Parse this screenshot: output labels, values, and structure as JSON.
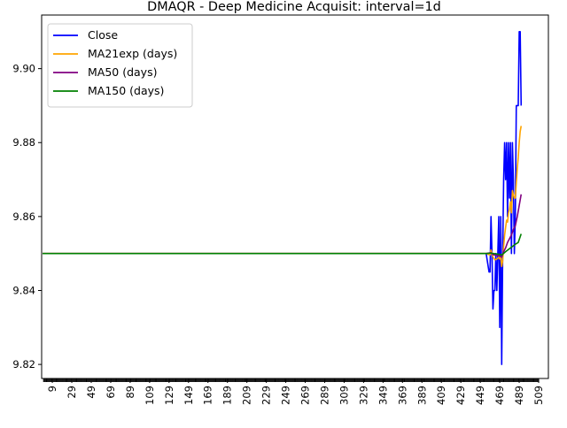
{
  "chart_data": {
    "type": "line",
    "title": "DMAQR - Deep Medicine Acquisit: interval=1d",
    "xlabel": "",
    "ylabel": "",
    "xlim": [
      -2,
      519
    ],
    "ylim": [
      9.8162,
      9.9145
    ],
    "x_ticks": [
      9,
      29,
      49,
      69,
      89,
      109,
      129,
      149,
      169,
      189,
      209,
      229,
      249,
      269,
      289,
      309,
      329,
      349,
      369,
      389,
      409,
      429,
      449,
      469,
      489,
      509
    ],
    "y_ticks": [
      9.82,
      9.84,
      9.86,
      9.88,
      9.9
    ],
    "y_tick_labels": [
      "9.82",
      "9.84",
      "9.86",
      "9.88",
      "9.90"
    ],
    "legend_position": "top-left",
    "series": [
      {
        "name": "Close",
        "color": "#0000ff",
        "points": [
          [
            455,
            9.85
          ],
          [
            458,
            9.845
          ],
          [
            459,
            9.845
          ],
          [
            460,
            9.86
          ],
          [
            461,
            9.85
          ],
          [
            462,
            9.835
          ],
          [
            463,
            9.84
          ],
          [
            464,
            9.84
          ],
          [
            465,
            9.85
          ],
          [
            466,
            9.84
          ],
          [
            467,
            9.85
          ],
          [
            468,
            9.86
          ],
          [
            469,
            9.83
          ],
          [
            470,
            9.86
          ],
          [
            471,
            9.82
          ],
          [
            472,
            9.85
          ],
          [
            473,
            9.87
          ],
          [
            474,
            9.88
          ],
          [
            475,
            9.87
          ],
          [
            476,
            9.88
          ],
          [
            477,
            9.86
          ],
          [
            478,
            9.88
          ],
          [
            479,
            9.865
          ],
          [
            480,
            9.88
          ],
          [
            481,
            9.85
          ],
          [
            482,
            9.88
          ],
          [
            483,
            9.87
          ],
          [
            484,
            9.85
          ],
          [
            485,
            9.86
          ],
          [
            486,
            9.89
          ],
          [
            487,
            9.89
          ],
          [
            488,
            9.89
          ],
          [
            489,
            9.91
          ],
          [
            490,
            9.91
          ],
          [
            491,
            9.89
          ]
        ]
      },
      {
        "name": "MA21exp (days)",
        "color": "#ffa500",
        "points": [
          [
            -1,
            9.85
          ],
          [
            455,
            9.85
          ],
          [
            459,
            9.8496
          ],
          [
            460,
            9.851
          ],
          [
            462,
            9.849
          ],
          [
            464,
            9.8483
          ],
          [
            466,
            9.8485
          ],
          [
            468,
            9.849
          ],
          [
            469,
            9.8485
          ],
          [
            470,
            9.849
          ],
          [
            471,
            9.8465
          ],
          [
            472,
            9.848
          ],
          [
            473,
            9.852
          ],
          [
            474,
            9.855
          ],
          [
            475,
            9.857
          ],
          [
            476,
            9.859
          ],
          [
            477,
            9.8585
          ],
          [
            478,
            9.861
          ],
          [
            479,
            9.862
          ],
          [
            480,
            9.864
          ],
          [
            481,
            9.861
          ],
          [
            482,
            9.867
          ],
          [
            483,
            9.866
          ],
          [
            484,
            9.865
          ],
          [
            485,
            9.865
          ],
          [
            486,
            9.869
          ],
          [
            487,
            9.873
          ],
          [
            488,
            9.876
          ],
          [
            489,
            9.88
          ],
          [
            490,
            9.883
          ],
          [
            491,
            9.8845
          ]
        ]
      },
      {
        "name": "MA50 (days)",
        "color": "#800080",
        "points": [
          [
            -1,
            9.85
          ],
          [
            455,
            9.85
          ],
          [
            460,
            9.8502
          ],
          [
            462,
            9.8497
          ],
          [
            465,
            9.8495
          ],
          [
            468,
            9.8494
          ],
          [
            470,
            9.8492
          ],
          [
            471,
            9.849
          ],
          [
            473,
            9.8505
          ],
          [
            475,
            9.8515
          ],
          [
            477,
            9.853
          ],
          [
            479,
            9.854
          ],
          [
            481,
            9.855
          ],
          [
            483,
            9.8565
          ],
          [
            485,
            9.8575
          ],
          [
            487,
            9.86
          ],
          [
            489,
            9.863
          ],
          [
            491,
            9.866
          ]
        ]
      },
      {
        "name": "MA150 (days)",
        "color": "#008000",
        "points": [
          [
            -1,
            9.85
          ],
          [
            455,
            9.85
          ],
          [
            460,
            9.8501
          ],
          [
            465,
            9.8499
          ],
          [
            470,
            9.8497
          ],
          [
            471,
            9.8496
          ],
          [
            475,
            9.8505
          ],
          [
            480,
            9.8515
          ],
          [
            485,
            9.8525
          ],
          [
            488,
            9.853
          ],
          [
            491,
            9.8553
          ]
        ]
      }
    ]
  }
}
